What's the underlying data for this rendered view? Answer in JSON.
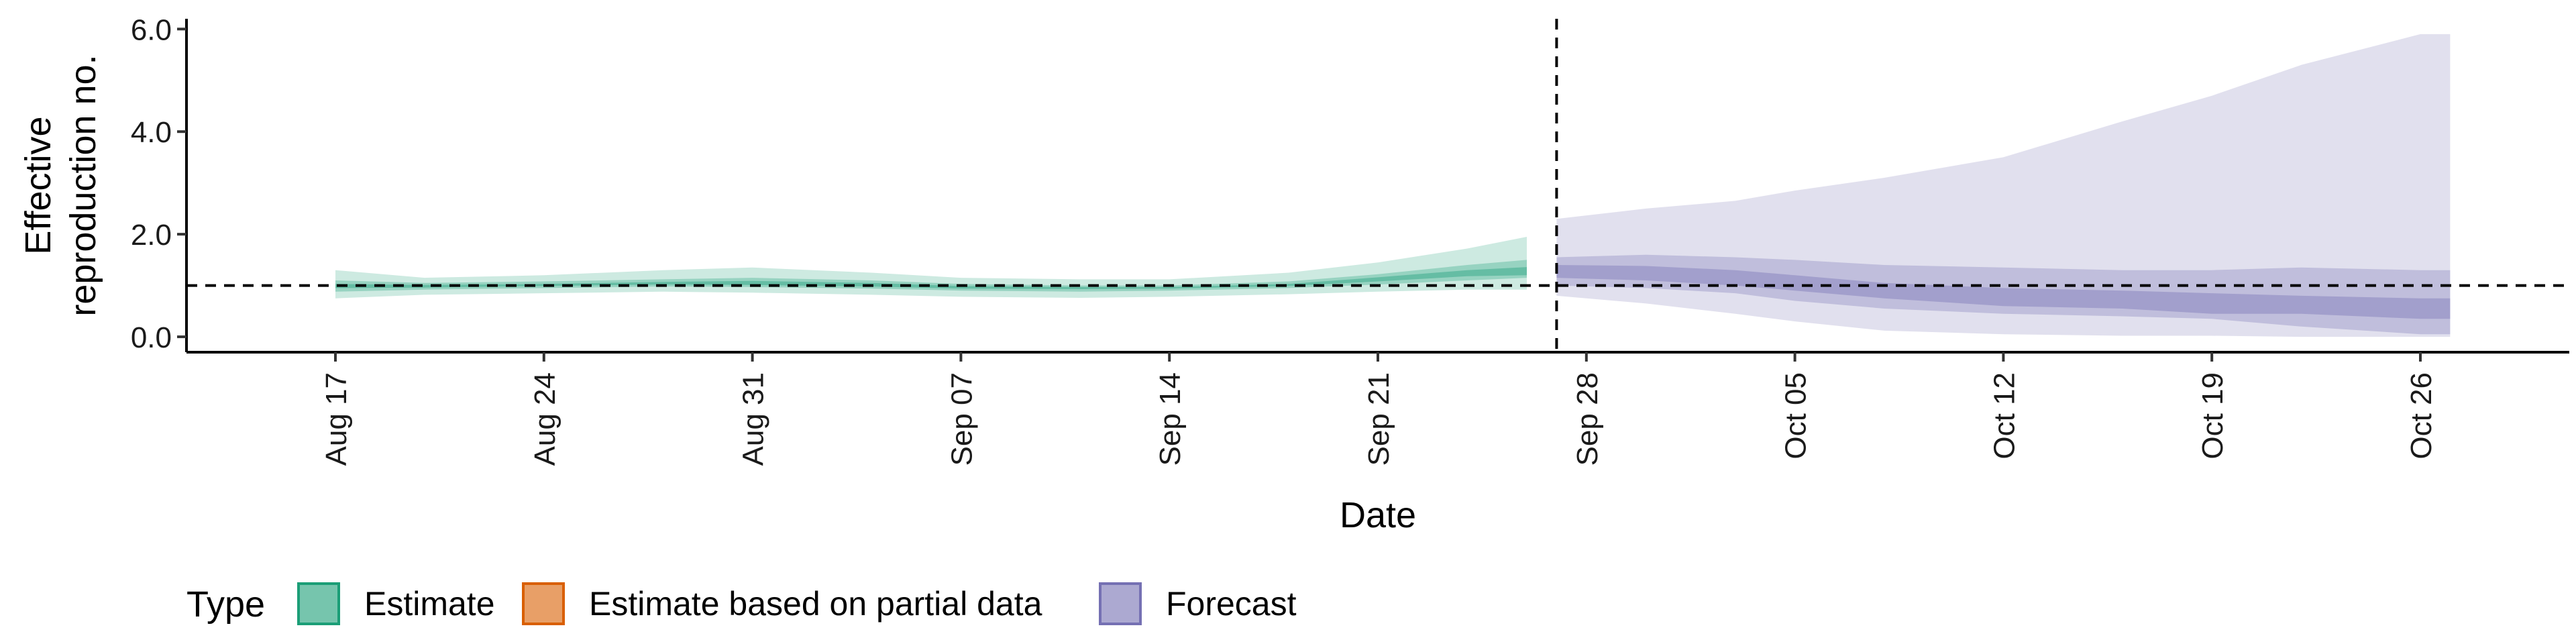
{
  "chart_data": {
    "type": "area",
    "xlabel": "Date",
    "ylabel": [
      "Effective",
      "reproduction no."
    ],
    "ylim": [
      -0.3,
      6.2
    ],
    "xlim": [
      "2020-08-12",
      "2020-10-31"
    ],
    "y_ticks": [
      "0.0",
      "2.0",
      "4.0",
      "6.0"
    ],
    "y_tick_values": [
      0,
      2,
      4,
      6
    ],
    "x_ticks": [
      "Aug 17",
      "Aug 24",
      "Aug 31",
      "Sep 07",
      "Sep 14",
      "Sep 21",
      "Sep 28",
      "Oct 05",
      "Oct 12",
      "Oct 19",
      "Oct 26"
    ],
    "x_tick_dates": [
      "2020-08-17",
      "2020-08-24",
      "2020-08-31",
      "2020-09-07",
      "2020-09-14",
      "2020-09-21",
      "2020-09-28",
      "2020-10-05",
      "2020-10-12",
      "2020-10-19",
      "2020-10-26"
    ],
    "reference_line_y": 1.0,
    "forecast_start_date": "2020-09-27",
    "grid": false,
    "legend_position": "bottom-left",
    "legend": {
      "title": "Type",
      "entries": [
        {
          "label": "Estimate",
          "color": "#1b9e77"
        },
        {
          "label": "Estimate based on partial data",
          "color": "#d95f02"
        },
        {
          "label": "Forecast",
          "color": "#7570b3"
        }
      ]
    },
    "series": [
      {
        "name": "Estimate",
        "color": "#1b9e77",
        "x": [
          "2020-08-17",
          "2020-08-20",
          "2020-08-24",
          "2020-08-28",
          "2020-08-31",
          "2020-09-04",
          "2020-09-07",
          "2020-09-11",
          "2020-09-14",
          "2020-09-18",
          "2020-09-21",
          "2020-09-24",
          "2020-09-26"
        ],
        "lower90": [
          0.75,
          0.82,
          0.85,
          0.88,
          0.86,
          0.82,
          0.78,
          0.76,
          0.78,
          0.83,
          0.88,
          0.92,
          0.92
        ],
        "upper90": [
          1.3,
          1.15,
          1.2,
          1.3,
          1.35,
          1.25,
          1.15,
          1.12,
          1.12,
          1.25,
          1.45,
          1.72,
          1.95
        ],
        "lower50": [
          0.88,
          0.92,
          0.95,
          0.98,
          0.97,
          0.94,
          0.9,
          0.88,
          0.9,
          0.95,
          1.02,
          1.1,
          1.15
        ],
        "upper50": [
          1.1,
          1.05,
          1.08,
          1.12,
          1.15,
          1.1,
          1.03,
          1.0,
          1.0,
          1.08,
          1.22,
          1.4,
          1.5
        ],
        "lower20": [
          0.95,
          0.96,
          0.99,
          1.02,
          1.01,
          0.98,
          0.94,
          0.93,
          0.94,
          0.99,
          1.08,
          1.18,
          1.2
        ],
        "upper20": [
          1.03,
          1.01,
          1.03,
          1.07,
          1.09,
          1.05,
          0.99,
          0.97,
          0.97,
          1.03,
          1.16,
          1.3,
          1.36
        ]
      },
      {
        "name": "Forecast",
        "color": "#7570b3",
        "x": [
          "2020-09-27",
          "2020-09-30",
          "2020-10-03",
          "2020-10-05",
          "2020-10-08",
          "2020-10-12",
          "2020-10-16",
          "2020-10-19",
          "2020-10-22",
          "2020-10-26",
          "2020-10-27"
        ],
        "lower90": [
          0.8,
          0.65,
          0.45,
          0.3,
          0.12,
          0.05,
          0.02,
          0.02,
          0.0,
          0.0,
          0.0
        ],
        "upper90": [
          2.3,
          2.5,
          2.65,
          2.85,
          3.1,
          3.5,
          4.2,
          4.7,
          5.3,
          5.9,
          5.9
        ],
        "lower50": [
          1.0,
          0.95,
          0.85,
          0.7,
          0.55,
          0.45,
          0.4,
          0.35,
          0.2,
          0.05,
          0.05
        ],
        "upper50": [
          1.55,
          1.6,
          1.55,
          1.5,
          1.4,
          1.35,
          1.3,
          1.3,
          1.35,
          1.3,
          1.3
        ],
        "lower20": [
          1.15,
          1.1,
          1.0,
          0.9,
          0.75,
          0.6,
          0.55,
          0.45,
          0.45,
          0.35,
          0.35
        ],
        "upper20": [
          1.4,
          1.38,
          1.3,
          1.2,
          1.05,
          0.95,
          0.9,
          0.85,
          0.8,
          0.75,
          0.75
        ]
      }
    ]
  }
}
